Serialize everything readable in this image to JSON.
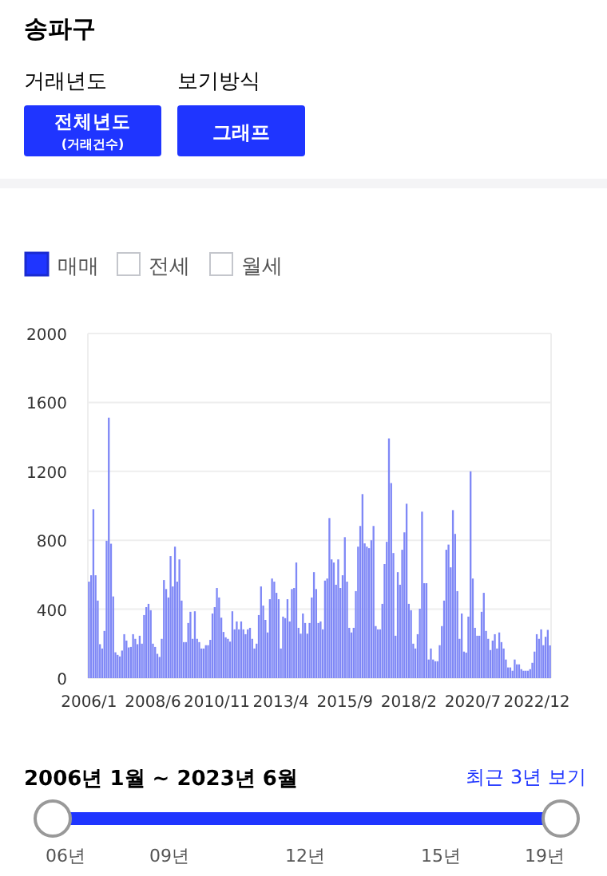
{
  "chart_data": {
    "type": "bar",
    "title": "송파구",
    "categories": [
      "2006/1",
      null,
      null,
      null,
      null,
      null,
      null,
      null,
      null,
      null,
      null,
      null,
      null,
      null,
      null,
      null,
      null,
      null,
      null,
      null,
      null,
      null,
      null,
      null,
      null,
      null,
      null,
      null,
      null,
      "2008/6",
      null,
      null,
      null,
      null,
      null,
      null,
      null,
      null,
      null,
      null,
      null,
      null,
      null,
      null,
      null,
      null,
      null,
      null,
      null,
      null,
      null,
      null,
      null,
      null,
      null,
      null,
      null,
      null,
      "2010/11",
      null,
      null,
      null,
      null,
      null,
      null,
      null,
      null,
      null,
      null,
      null,
      null,
      null,
      null,
      null,
      null,
      null,
      null,
      null,
      null,
      null,
      null,
      null,
      null,
      null,
      null,
      null,
      null,
      "2013/4",
      null,
      null,
      null,
      null,
      null,
      null,
      null,
      null,
      null,
      null,
      null,
      null,
      null,
      null,
      null,
      null,
      null,
      null,
      null,
      null,
      null,
      null,
      null,
      null,
      null,
      null,
      null,
      null,
      "2015/9",
      null,
      null,
      null,
      null,
      null,
      null,
      null,
      null,
      null,
      null,
      null,
      null,
      null,
      null,
      null,
      null,
      null,
      null,
      null,
      null,
      null,
      null,
      null,
      null,
      null,
      null,
      null,
      null,
      "2018/2",
      null,
      null,
      null,
      null,
      null,
      null,
      null,
      null,
      null,
      null,
      null,
      null,
      null,
      null,
      null,
      null,
      null,
      null,
      null,
      null,
      null,
      null,
      null,
      null,
      null,
      null,
      null,
      null,
      "2020/7",
      null,
      null,
      null,
      null,
      null,
      null,
      null,
      null,
      null,
      null,
      null,
      null,
      null,
      null,
      null,
      null,
      null,
      null,
      null,
      null,
      null,
      null,
      null,
      null,
      null,
      null,
      null,
      null,
      "2022/12",
      null,
      null,
      null,
      null,
      null,
      null
    ],
    "series": [
      {
        "name": "매매",
        "color": "#7f88f6",
        "values": [
          560,
          597,
          980,
          597,
          450,
          197,
          172,
          274,
          797,
          1511,
          780,
          474,
          150,
          135,
          126,
          160,
          255,
          218,
          178,
          181,
          255,
          228,
          197,
          246,
          200,
          366,
          412,
          431,
          394,
          200,
          181,
          141,
          123,
          228,
          569,
          517,
          468,
          708,
          532,
          763,
          560,
          689,
          450,
          209,
          209,
          320,
          385,
          228,
          388,
          228,
          209,
          172,
          172,
          191,
          191,
          222,
          375,
          412,
          523,
          468,
          351,
          268,
          237,
          228,
          212,
          388,
          283,
          329,
          283,
          329,
          283,
          255,
          283,
          292,
          228,
          172,
          200,
          366,
          532,
          421,
          338,
          265,
          458,
          578,
          560,
          495,
          458,
          172,
          357,
          348,
          458,
          329,
          517,
          523,
          671,
          292,
          258,
          375,
          320,
          258,
          320,
          468,
          615,
          517,
          320,
          329,
          283,
          566,
          578,
          929,
          689,
          671,
          542,
          689,
          523,
          597,
          818,
          560,
          292,
          265,
          292,
          505,
          763,
          883,
          1068,
          782,
          763,
          754,
          800,
          883,
          302,
          283,
          283,
          431,
          662,
          791,
          1391,
          1132,
          726,
          246,
          615,
          542,
          745,
          846,
          1012,
          431,
          394,
          200,
          172,
          255,
          403,
          966,
          551,
          551,
          108,
          172,
          108,
          98,
          98,
          191,
          302,
          450,
          745,
          775,
          643,
          975,
          837,
          505,
          228,
          375,
          154,
          148,
          357,
          1200,
          578,
          292,
          246,
          246,
          385,
          495,
          274,
          228,
          163,
          218,
          255,
          172,
          265,
          209,
          172,
          108,
          62,
          62,
          43,
          108,
          80,
          80,
          52,
          43,
          43,
          43,
          52,
          89,
          154,
          255,
          228,
          283,
          191,
          240,
          280,
          190
        ]
      }
    ],
    "ylim": [
      0,
      2000
    ],
    "yticks": [
      0,
      400,
      800,
      1200,
      1600,
      2000
    ],
    "grid": "y",
    "legend": "top left",
    "annotations": [
      "거래년도",
      "보기방식",
      "전체년도",
      "(거래건수)",
      "그래프",
      "전세",
      "월세",
      "2006년 1월 ~ 2023년 6월",
      "최근 3년 보기",
      "06년",
      "09년",
      "12년",
      "15년",
      "19년"
    ]
  }
}
